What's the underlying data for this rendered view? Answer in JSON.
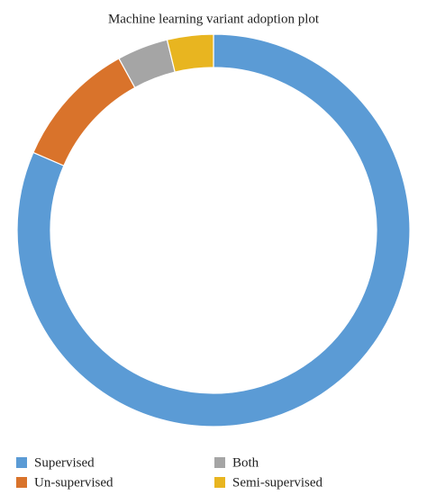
{
  "chart_data": {
    "type": "donut",
    "title": "Machine learning variant adoption plot",
    "categories": [
      "Supervised",
      "Un-supervised",
      "Both",
      "Semi-supervised"
    ],
    "values": [
      81.5,
      10.5,
      4.2,
      3.8
    ],
    "colors": [
      "#5b9bd5",
      "#d9732b",
      "#a5a5a5",
      "#e8b520"
    ],
    "legend": "bottom"
  }
}
